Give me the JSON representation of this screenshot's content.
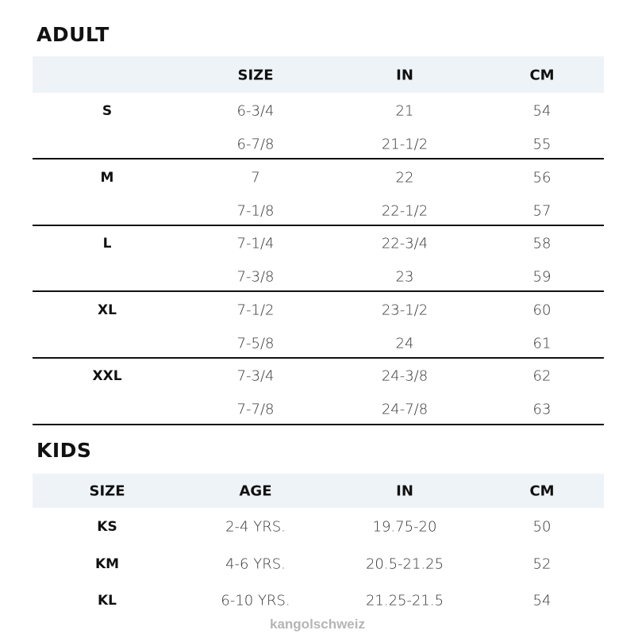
{
  "adult": {
    "title": "ADULT",
    "headers": [
      "",
      "SIZE",
      "IN",
      "CM"
    ],
    "groups": [
      {
        "label": "S",
        "rows": [
          [
            "6-3/4",
            "21",
            "54"
          ],
          [
            "6-7/8",
            "21-1/2",
            "55"
          ]
        ]
      },
      {
        "label": "M",
        "rows": [
          [
            "7",
            "22",
            "56"
          ],
          [
            "7-1/8",
            "22-1/2",
            "57"
          ]
        ]
      },
      {
        "label": "L",
        "rows": [
          [
            "7-1/4",
            "22-3/4",
            "58"
          ],
          [
            "7-3/8",
            "23",
            "59"
          ]
        ]
      },
      {
        "label": "XL",
        "rows": [
          [
            "7-1/2",
            "23-1/2",
            "60"
          ],
          [
            "7-5/8",
            "24",
            "61"
          ]
        ]
      },
      {
        "label": "XXL",
        "rows": [
          [
            "7-3/4",
            "24-3/8",
            "62"
          ],
          [
            "7-7/8",
            "24-7/8",
            "63"
          ]
        ]
      }
    ]
  },
  "kids": {
    "title": "KIDS",
    "headers": [
      "SIZE",
      "AGE",
      "IN",
      "CM"
    ],
    "rows": [
      [
        "KS",
        "2-4 YRS.",
        "19.75-20",
        "50"
      ],
      [
        "KM",
        "4-6 YRS.",
        "20.5-21.25",
        "52"
      ],
      [
        "KL",
        "6-10 YRS.",
        "21.25-21.5",
        "54"
      ]
    ]
  },
  "watermark": "kangolschweiz",
  "colors": {
    "header_band": "#eef3f8",
    "rule": "#111111"
  }
}
